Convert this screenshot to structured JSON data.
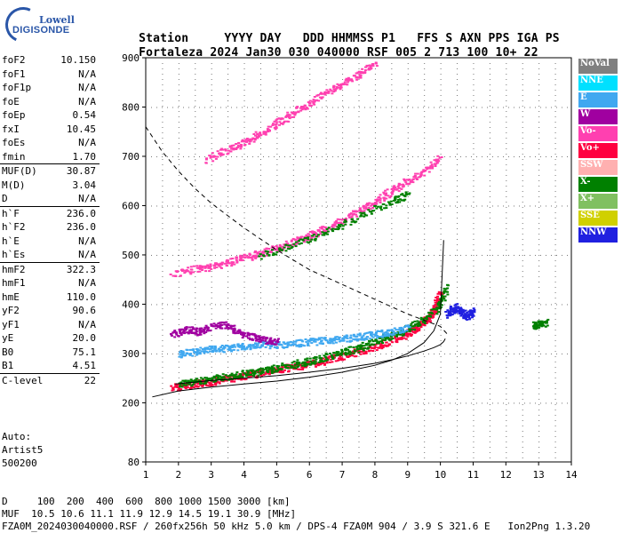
{
  "logo": {
    "line1": "Lowell",
    "line2": "DIGISONDE"
  },
  "header": {
    "line1": [
      "Station",
      "YYYY",
      "DAY",
      "DDD",
      "HHMMSS",
      "P1",
      "FFS",
      "S",
      "AXN",
      "PPS",
      "IGA",
      "PS"
    ],
    "line2": [
      "Fortaleza",
      "2024",
      "Jan30",
      "030",
      "040000",
      "RSF",
      "005",
      "2",
      "713",
      "100",
      "10+",
      "22"
    ]
  },
  "params": [
    {
      "name": "foF2",
      "value": "10.150"
    },
    {
      "name": "foF1",
      "value": "N/A"
    },
    {
      "name": "foF1p",
      "value": "N/A"
    },
    {
      "name": "foE",
      "value": "N/A"
    },
    {
      "name": "foEp",
      "value": "0.54"
    },
    {
      "name": "fxI",
      "value": "10.45"
    },
    {
      "name": "foEs",
      "value": "N/A"
    },
    {
      "name": "fmin",
      "value": "1.70"
    },
    {
      "name": "MUF(D)",
      "value": "30.87",
      "sep": true
    },
    {
      "name": "M(D)",
      "value": "3.04"
    },
    {
      "name": "D",
      "value": "N/A"
    },
    {
      "name": "h`F",
      "value": "236.0",
      "sep": true
    },
    {
      "name": "h`F2",
      "value": "236.0"
    },
    {
      "name": "h`E",
      "value": "N/A"
    },
    {
      "name": "h`Es",
      "value": "N/A"
    },
    {
      "name": "hmF2",
      "value": "322.3",
      "sep": true
    },
    {
      "name": "hmF1",
      "value": "N/A"
    },
    {
      "name": "hmE",
      "value": "110.0"
    },
    {
      "name": "yF2",
      "value": "90.6"
    },
    {
      "name": "yF1",
      "value": "N/A"
    },
    {
      "name": "yE",
      "value": "20.0"
    },
    {
      "name": "B0",
      "value": "75.1"
    },
    {
      "name": "B1",
      "value": "4.51"
    },
    {
      "name": "C-level",
      "value": "22",
      "sep": true
    }
  ],
  "meta": {
    "auto": "Auto:",
    "artist": "Artist5",
    "version": "500200"
  },
  "legend": [
    {
      "label": "NoVal",
      "color": "#808080"
    },
    {
      "label": "NNE",
      "color": "#00e0ff"
    },
    {
      "label": "E",
      "color": "#40a8f0"
    },
    {
      "label": "W",
      "color": "#a000a0"
    },
    {
      "label": "Vo-",
      "color": "#ff40b0"
    },
    {
      "label": "Vo+",
      "color": "#ff0040"
    },
    {
      "label": "SSW",
      "color": "#ffb0b0"
    },
    {
      "label": "X-",
      "color": "#008000"
    },
    {
      "label": "X+",
      "color": "#80c060"
    },
    {
      "label": "SSE",
      "color": "#d0d000"
    },
    {
      "label": "NNW",
      "color": "#2020e0"
    }
  ],
  "bottom": {
    "line1": "D     100  200  400  600  800 1000 1500 3000 [km]",
    "line2": "MUF  10.5 10.6 11.1 11.9 12.9 14.5 19.1 30.9 [MHz]",
    "line3": "FZA0M_2024030040000.RSF / 260fx256h 50 kHz 5.0 km / DPS-4 FZA0M 904 / 3.9 S 321.6 E   Ion2Png 1.3.20"
  },
  "chart_data": {
    "type": "scatter",
    "title": "",
    "xlabel": "",
    "ylabel": "",
    "xlim": [
      1,
      14
    ],
    "ylim": [
      80,
      900
    ],
    "x_ticks": [
      1,
      2,
      3,
      4,
      5,
      6,
      7,
      8,
      9,
      10,
      11,
      12,
      13,
      14
    ],
    "y_ticks": [
      80,
      200,
      300,
      400,
      500,
      600,
      700,
      800,
      900
    ],
    "series": [
      {
        "name": "Vo+",
        "color": "#ff0040",
        "x": [
          1.8,
          2.2,
          2.6,
          3.0,
          3.5,
          4.0,
          4.5,
          5.0,
          5.5,
          6.0,
          6.5,
          7.0,
          7.5,
          8.0,
          8.5,
          9.0,
          9.3,
          9.6,
          9.8,
          10.0
        ],
        "y": [
          232,
          236,
          240,
          244,
          250,
          256,
          262,
          268,
          274,
          280,
          288,
          296,
          305,
          315,
          328,
          342,
          355,
          372,
          392,
          425
        ]
      },
      {
        "name": "Vo-",
        "color": "#ff40b0",
        "x": [
          1.8,
          2.5,
          3.0,
          3.5,
          4.0,
          4.5,
          5.0,
          5.5,
          6.0,
          6.5,
          7.0,
          7.5,
          8.0,
          8.5,
          9.0,
          9.5,
          10.0
        ],
        "y": [
          462,
          472,
          478,
          486,
          495,
          505,
          515,
          528,
          540,
          555,
          570,
          590,
          610,
          632,
          652,
          672,
          700
        ]
      },
      {
        "name": "Vo-",
        "color": "#ff40b0",
        "x": [
          2.8,
          3.5,
          4.0,
          4.5,
          5.0,
          5.5,
          6.0,
          6.5,
          7.0,
          7.5,
          8.0
        ],
        "y": [
          695,
          715,
          730,
          748,
          768,
          790,
          810,
          830,
          850,
          870,
          890
        ]
      },
      {
        "name": "X-",
        "color": "#008000",
        "x": [
          2.0,
          2.5,
          3.0,
          3.5,
          4.0,
          4.5,
          5.0,
          5.5,
          6.0,
          6.5,
          7.0,
          7.5,
          8.0,
          8.5,
          9.0,
          9.5,
          10.0,
          10.2
        ],
        "y": [
          240,
          244,
          249,
          254,
          260,
          266,
          272,
          279,
          286,
          294,
          303,
          313,
          325,
          338,
          352,
          372,
          400,
          440
        ]
      },
      {
        "name": "X-",
        "color": "#008000",
        "x": [
          4.5,
          5.5,
          6.5,
          7.5,
          8.5,
          9.0
        ],
        "y": [
          500,
          522,
          548,
          578,
          610,
          625
        ]
      },
      {
        "name": "E",
        "color": "#40a8f0",
        "x": [
          2.0,
          2.5,
          3.0,
          3.5,
          4.0,
          4.5,
          5.0,
          5.5,
          6.0,
          6.5,
          7.0,
          7.5,
          8.0,
          8.5,
          9.0
        ],
        "y": [
          300,
          305,
          310,
          312,
          316,
          320,
          318,
          322,
          325,
          328,
          330,
          335,
          340,
          345,
          355
        ]
      },
      {
        "name": "W",
        "color": "#a000a0",
        "x": [
          1.8,
          2.2,
          2.6,
          3.0,
          3.4,
          3.8,
          4.2,
          4.6,
          5.0
        ],
        "y": [
          340,
          350,
          345,
          355,
          360,
          345,
          335,
          330,
          325
        ]
      },
      {
        "name": "NNW",
        "color": "#2020e0",
        "x": [
          10.2,
          10.4,
          10.6,
          10.8,
          11.0
        ],
        "y": [
          380,
          395,
          385,
          375,
          390
        ]
      },
      {
        "name": "X-",
        "color": "#008000",
        "x": [
          12.8,
          13.0,
          13.2
        ],
        "y": [
          358,
          360,
          364
        ]
      }
    ],
    "curves": [
      {
        "name": "virtual-height-profile",
        "style": "solid",
        "x": [
          1.2,
          2.0,
          3.0,
          4.0,
          5.0,
          6.0,
          7.0,
          8.0,
          8.5,
          9.0,
          9.5,
          9.8,
          10.0,
          10.1
        ],
        "y": [
          212,
          224,
          232,
          238,
          244,
          252,
          262,
          276,
          286,
          300,
          322,
          346,
          380,
          530
        ]
      },
      {
        "name": "true-height-profile",
        "style": "solid",
        "x": [
          1.9,
          3.0,
          4.0,
          5.0,
          6.0,
          7.0,
          8.0,
          8.5,
          9.0,
          9.5,
          9.8,
          10.0,
          10.1,
          10.15
        ],
        "y": [
          238,
          245,
          250,
          255,
          262,
          270,
          280,
          287,
          295,
          305,
          312,
          318,
          324,
          330
        ]
      },
      {
        "name": "muf-curve",
        "style": "dashed",
        "x": [
          1.0,
          1.5,
          2.0,
          2.5,
          3.0,
          3.5,
          4.0,
          5.0,
          6.0,
          7.0,
          8.0,
          9.0,
          10.0,
          10.2
        ],
        "y": [
          760,
          710,
          670,
          635,
          605,
          580,
          555,
          510,
          470,
          440,
          410,
          380,
          355,
          340
        ]
      }
    ]
  }
}
